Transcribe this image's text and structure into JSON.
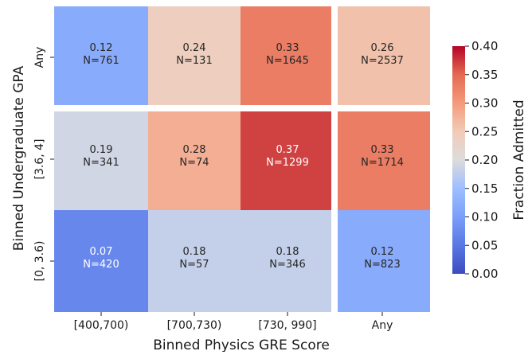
{
  "chart_data": {
    "type": "heatmap",
    "x_categories": [
      "[400,700)",
      "[700,730)",
      "[730, 990]",
      "Any"
    ],
    "y_categories": [
      "Any",
      "[3.6, 4]",
      "[0, 3.6)"
    ],
    "xlabel": "Binned Physics GRE Score",
    "ylabel": "Binned Undergraduate GPA",
    "cells": [
      [
        {
          "value": 0.12,
          "label": "0.12",
          "n_label": "N=761"
        },
        {
          "value": 0.24,
          "label": "0.24",
          "n_label": "N=131"
        },
        {
          "value": 0.33,
          "label": "0.33",
          "n_label": "N=1645"
        },
        {
          "value": 0.26,
          "label": "0.26",
          "n_label": "N=2537"
        }
      ],
      [
        {
          "value": 0.19,
          "label": "0.19",
          "n_label": "N=341"
        },
        {
          "value": 0.28,
          "label": "0.28",
          "n_label": "N=74"
        },
        {
          "value": 0.37,
          "label": "0.37",
          "n_label": "N=1299"
        },
        {
          "value": 0.33,
          "label": "0.33",
          "n_label": "N=1714"
        }
      ],
      [
        {
          "value": 0.07,
          "label": "0.07",
          "n_label": "N=420"
        },
        {
          "value": 0.18,
          "label": "0.18",
          "n_label": "N=57"
        },
        {
          "value": 0.18,
          "label": "0.18",
          "n_label": "N=346"
        },
        {
          "value": 0.12,
          "label": "0.12",
          "n_label": "N=823"
        }
      ]
    ],
    "colorbar": {
      "label": "Fraction Admitted",
      "range": [
        0.0,
        0.4
      ],
      "ticks": [
        "0.00",
        "0.05",
        "0.10",
        "0.15",
        "0.20",
        "0.25",
        "0.30",
        "0.35",
        "0.40"
      ],
      "colormap": "coolwarm"
    }
  }
}
